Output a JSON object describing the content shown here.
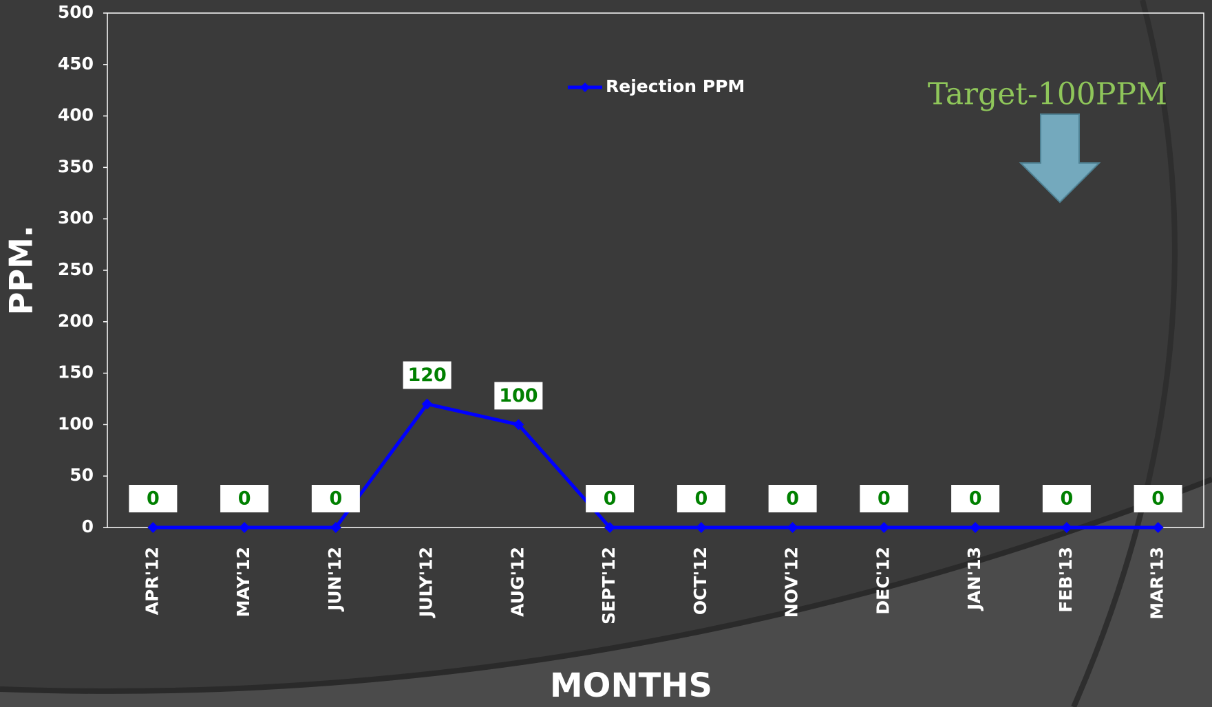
{
  "chart_data": {
    "type": "line",
    "y_label": "PPM.",
    "x_label": "MONTHS",
    "annotation": "Target-100PPM",
    "categories": [
      "APR'12",
      "MAY'12",
      "JUN'12",
      "JULY'12",
      "AUG'12",
      "SEPT'12",
      "OCT'12",
      "NOV'12",
      "DEC'12",
      "JAN'13",
      "FEB'13",
      "MAR'13"
    ],
    "series": [
      {
        "name": "Rejection PPM",
        "color": "#0000ff",
        "values": [
          0,
          0,
          0,
          120,
          100,
          0,
          0,
          0,
          0,
          0,
          0,
          0
        ]
      }
    ],
    "ylim": [
      0,
      500
    ],
    "yticks": [
      0,
      50,
      100,
      150,
      200,
      250,
      300,
      350,
      400,
      450,
      500
    ],
    "grid": false,
    "legend": "top"
  }
}
